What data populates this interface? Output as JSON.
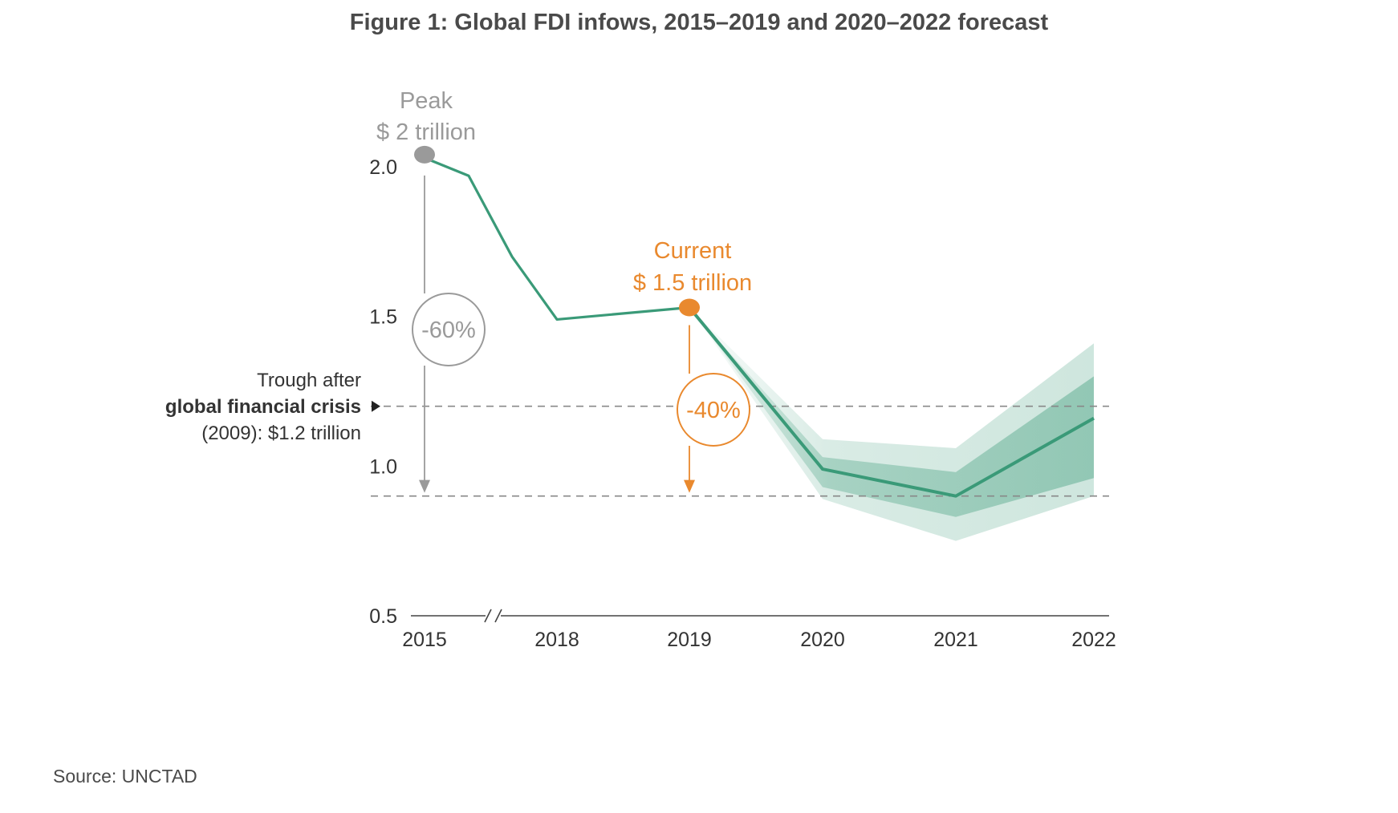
{
  "title": "Figure 1: Global FDI infows, 2015–2019 and 2020–2022 forecast",
  "source": "Source: UNCTAD",
  "colors": {
    "line": "#3a9a78",
    "band": "#3a9a78",
    "peak": "#9a9a9a",
    "current": "#e9892e",
    "reference": "#888888"
  },
  "chart_data": {
    "type": "line",
    "x_labels": [
      "2015",
      "2018",
      "2019",
      "2020",
      "2021",
      "2022"
    ],
    "y_ticks": [
      "0.5",
      "1.0",
      "1.5",
      "2.0"
    ],
    "ylim": [
      0.5,
      2.0
    ],
    "axis_break": "2015–2018",
    "grid": false,
    "series": [
      {
        "kind": "historical",
        "points": [
          {
            "x": "2015",
            "y": 2.03
          },
          {
            "x": "2016",
            "y": 1.97
          },
          {
            "x": "2017",
            "y": 1.7
          },
          {
            "x": "2018",
            "y": 1.49
          },
          {
            "x": "2019",
            "y": 1.53
          }
        ]
      },
      {
        "kind": "forecast",
        "points": [
          {
            "x": "2019",
            "y": 1.53
          },
          {
            "x": "2020",
            "y": 0.99
          },
          {
            "x": "2021",
            "y": 0.9
          },
          {
            "x": "2022",
            "y": 1.16
          }
        ],
        "band_outer": {
          "upper": [
            1.53,
            1.09,
            1.06,
            1.41
          ],
          "lower": [
            1.53,
            0.89,
            0.75,
            0.9
          ]
        },
        "band_inner": {
          "upper": [
            1.53,
            1.03,
            0.98,
            1.3
          ],
          "lower": [
            1.53,
            0.93,
            0.83,
            0.96
          ]
        }
      }
    ],
    "reference_lines": [
      1.2,
      0.9
    ],
    "annotations": {
      "peak": {
        "line1": "Peak",
        "line2": "$ 2 trillion",
        "x": "2015",
        "y": 2.03,
        "change": "-60%",
        "arrow_to": 0.9
      },
      "current": {
        "line1": "Current",
        "line2": "$ 1.5 trillion",
        "x": "2019",
        "y": 1.53,
        "change": "-40%",
        "arrow_to": 0.9
      },
      "trough": {
        "line1": "Trough after",
        "line2": "global financial crisis",
        "line3": "(2009): $1.2 trillion",
        "y": 1.2
      }
    }
  }
}
